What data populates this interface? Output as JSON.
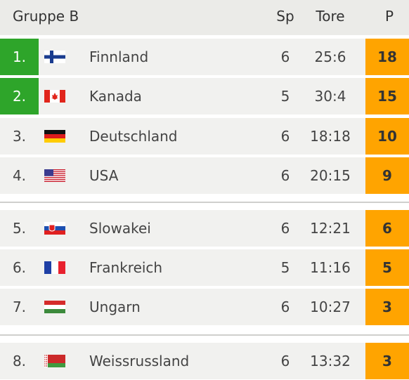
{
  "header": {
    "title": "Gruppe B",
    "columns": [
      "Sp",
      "Tore",
      "P"
    ]
  },
  "table": {
    "groups": [
      [
        [
          "1.",
          "Finnland",
          6,
          "25:6",
          18
        ],
        [
          "2.",
          "Kanada",
          5,
          "30:4",
          15
        ],
        [
          "3.",
          "Deutschland",
          6,
          "18:18",
          10
        ],
        [
          "4.",
          "USA",
          6,
          "20:15",
          9
        ]
      ],
      [
        [
          "5.",
          "Slowakei",
          6,
          "12:21",
          6
        ],
        [
          "6.",
          "Frankreich",
          5,
          "11:16",
          5
        ],
        [
          "7.",
          "Ungarn",
          6,
          "10:27",
          3
        ]
      ],
      [
        [
          "8.",
          "Weissrussland",
          6,
          "13:32",
          3
        ]
      ]
    ]
  }
}
